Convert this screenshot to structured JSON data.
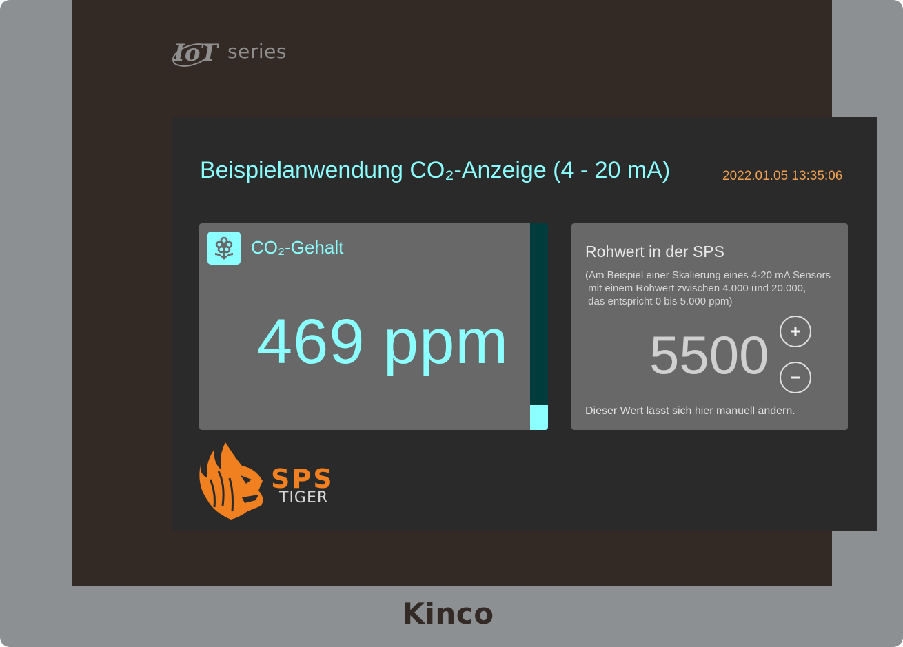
{
  "bezel": {
    "series_logo_mark": "IoT",
    "series_logo_text": "series",
    "brand": "Kinco"
  },
  "header": {
    "title": "Beispielanwendung CO₂-Anzeige (4 - 20 mA)",
    "datetime": "2022.01.05 13:35:06"
  },
  "co2_card": {
    "icon": "flower-icon",
    "label": "CO₂-Gehalt",
    "value_text": "469 ppm",
    "level_fraction": 0.12
  },
  "raw_card": {
    "title": "Rohwert in der SPS",
    "description": "(Am Beispiel einer Skalierung eines 4-20 mA Sensors\n mit einem Rohwert zwischen 4.000 und 20.000,\n das entspricht 0 bis 5.000 ppm)",
    "value": "5500",
    "increase_icon": "plus-icon",
    "decrease_icon": "minus-icon",
    "note": "Dieser Wert lässt sich hier manuell ändern."
  },
  "footer_logo": {
    "sps": "SPS",
    "tiger": "TIGER"
  },
  "colors": {
    "accent": "#8cffff",
    "datetime": "#f0a050",
    "logo_orange": "#f08020",
    "card_bg": "#686868",
    "screen_bg": "#2a2a2a",
    "bezel": "#342a25",
    "frame": "#8c9093"
  }
}
